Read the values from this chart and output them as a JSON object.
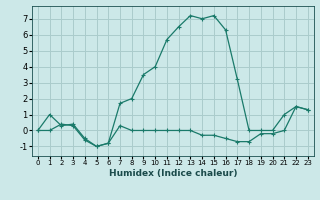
{
  "xlabel": "Humidex (Indice chaleur)",
  "background_color": "#cce8e8",
  "grid_color": "#aacccc",
  "line_color": "#1a7a6a",
  "xlim": [
    -0.5,
    23.5
  ],
  "ylim": [
    -1.6,
    7.8
  ],
  "xticks": [
    0,
    1,
    2,
    3,
    4,
    5,
    6,
    7,
    8,
    9,
    10,
    11,
    12,
    13,
    14,
    15,
    16,
    17,
    18,
    19,
    20,
    21,
    22,
    23
  ],
  "yticks": [
    -1,
    0,
    1,
    2,
    3,
    4,
    5,
    6,
    7
  ],
  "series": [
    [
      0.0,
      0.0,
      0.4,
      0.3,
      -0.6,
      -1.0,
      -0.8,
      0.3,
      0.0,
      0.0,
      0.0,
      0.0,
      0.0,
      0.0,
      -0.3,
      -0.3,
      -0.5,
      -0.7,
      -0.7,
      -0.2,
      -0.2,
      0.0,
      1.5,
      1.3
    ],
    [
      0.0,
      1.0,
      0.3,
      0.4,
      -0.5,
      -1.0,
      -0.8,
      1.7,
      2.0,
      3.5,
      4.0,
      5.7,
      6.5,
      7.2,
      7.0,
      7.2,
      6.3,
      3.2,
      0.0,
      0.0,
      0.0,
      1.0,
      1.5,
      1.3
    ]
  ],
  "xlabel_fontsize": 6.5,
  "tick_fontsize_x": 5.0,
  "tick_fontsize_y": 6.0
}
